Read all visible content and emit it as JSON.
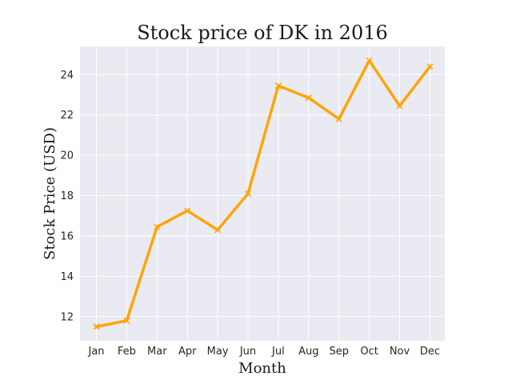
{
  "chart_data": {
    "type": "line",
    "title": "Stock price of DK in 2016",
    "xlabel": "Month",
    "ylabel": "Stock Price (USD)",
    "categories": [
      "Jan",
      "Feb",
      "Mar",
      "Apr",
      "May",
      "Jun",
      "Jul",
      "Aug",
      "Sep",
      "Oct",
      "Nov",
      "Dec"
    ],
    "series": [
      {
        "values": [
          11.5,
          11.8,
          16.45,
          17.25,
          16.3,
          18.1,
          23.45,
          22.85,
          21.8,
          24.7,
          22.45,
          24.4
        ],
        "color": "#FFA500",
        "marker": "x"
      }
    ],
    "y_ticks": [
      12,
      14,
      16,
      18,
      20,
      22,
      24
    ],
    "ylim": [
      10.8,
      25.4
    ],
    "grid": true,
    "background": "#EAEAF2",
    "grid_color": "#FFFFFF"
  }
}
